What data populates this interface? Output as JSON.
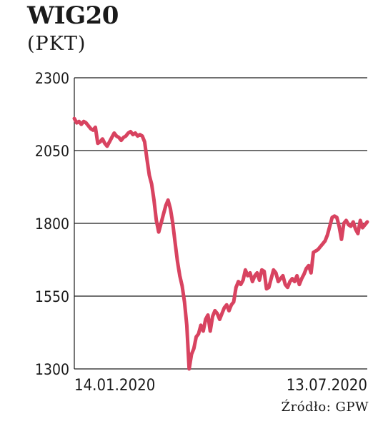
{
  "title": "WIG20",
  "subtitle": "(PKT)",
  "source": "Źródło: GPW",
  "colors": {
    "line": "#d84360",
    "grid": "#1a1a1a",
    "text": "#1a1a1a"
  },
  "chart_data": {
    "type": "line",
    "title": "WIG20",
    "ylabel": "(PKT)",
    "xlabel": "",
    "ylim": [
      1300,
      2300
    ],
    "yticks": [
      2300,
      2050,
      1800,
      1550,
      1300
    ],
    "xtick_labels": [
      "14.01.2020",
      "13.07.2020"
    ],
    "grid": true,
    "series": [
      {
        "values": [
          2160,
          2145,
          2150,
          2140,
          2150,
          2145,
          2135,
          2125,
          2120,
          2130,
          2075,
          2080,
          2090,
          2075,
          2065,
          2080,
          2095,
          2110,
          2100,
          2095,
          2085,
          2095,
          2100,
          2110,
          2115,
          2105,
          2110,
          2100,
          2105,
          2100,
          2080,
          2020,
          1965,
          1935,
          1880,
          1810,
          1770,
          1800,
          1830,
          1860,
          1880,
          1850,
          1800,
          1735,
          1670,
          1620,
          1585,
          1530,
          1450,
          1300,
          1350,
          1370,
          1410,
          1420,
          1450,
          1430,
          1470,
          1485,
          1430,
          1480,
          1500,
          1490,
          1470,
          1490,
          1510,
          1520,
          1500,
          1520,
          1530,
          1580,
          1600,
          1590,
          1605,
          1640,
          1620,
          1630,
          1600,
          1620,
          1630,
          1605,
          1640,
          1635,
          1575,
          1580,
          1610,
          1640,
          1630,
          1600,
          1610,
          1620,
          1590,
          1580,
          1600,
          1610,
          1600,
          1620,
          1590,
          1610,
          1625,
          1645,
          1655,
          1630,
          1700,
          1705,
          1710,
          1720,
          1730,
          1740,
          1760,
          1790,
          1820,
          1825,
          1820,
          1790,
          1745,
          1800,
          1810,
          1795,
          1790,
          1805,
          1780,
          1765,
          1810,
          1785,
          1795,
          1805
        ]
      }
    ]
  }
}
